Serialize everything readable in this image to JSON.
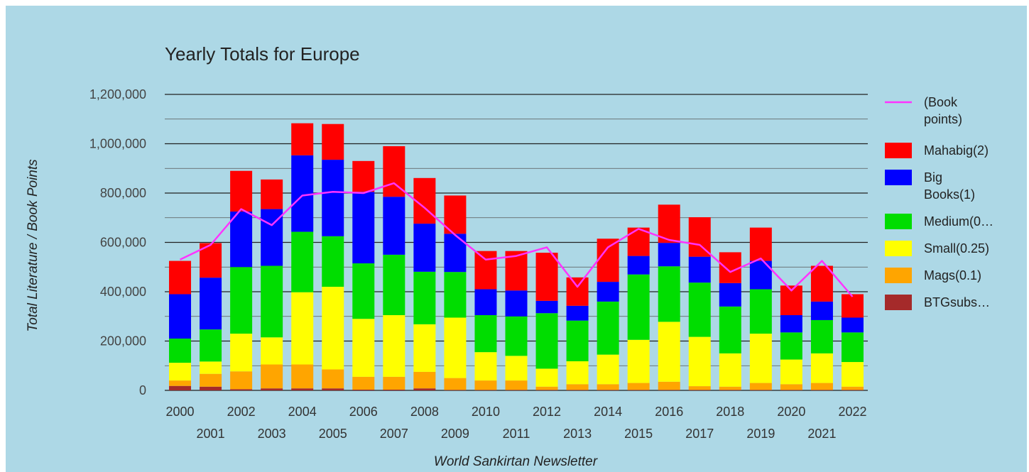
{
  "chart_data": {
    "type": "bar",
    "stacked": true,
    "title": "Yearly Totals for Europe",
    "xlabel": "World Sankirtan Newsletter",
    "ylabel": "Total Literature / Book Points",
    "ylim": [
      0,
      1200000
    ],
    "y_ticks": [
      "0",
      "200,000",
      "400,000",
      "600,000",
      "800,000",
      "1,000,000",
      "1,200,000"
    ],
    "grid": true,
    "legend_position": "right",
    "categories": [
      "2000",
      "2001",
      "2002",
      "2003",
      "2004",
      "2005",
      "2006",
      "2007",
      "2008",
      "2009",
      "2010",
      "2011",
      "2012",
      "2013",
      "2014",
      "2015",
      "2016",
      "2017",
      "2018",
      "2019",
      "2020",
      "2021",
      "2022"
    ],
    "series": [
      {
        "name": "BTGsubs…",
        "legend_label": "BTGsubs…",
        "color": "#a52a2a",
        "values": [
          18000,
          15000,
          5000,
          8000,
          8000,
          8000,
          3000,
          3000,
          8000,
          2000,
          2000,
          2000,
          2000,
          2000,
          2000,
          2000,
          2000,
          2000,
          2000,
          2000,
          2000,
          2000,
          2000
        ]
      },
      {
        "name": "Mags(0.1)",
        "legend_label": "Mags(0.1)",
        "color": "#ffa500",
        "values": [
          22000,
          52000,
          72000,
          97000,
          97000,
          77000,
          52000,
          52000,
          67000,
          48000,
          38000,
          38000,
          13000,
          23000,
          23000,
          28000,
          33000,
          15000,
          13000,
          28000,
          23000,
          28000,
          13000
        ]
      },
      {
        "name": "Small(0.25)",
        "legend_label": "Small(0.25)",
        "color": "#ffff00",
        "values": [
          72000,
          50000,
          153000,
          110000,
          293000,
          335000,
          235000,
          250000,
          193000,
          245000,
          115000,
          100000,
          73000,
          93000,
          120000,
          175000,
          243000,
          200000,
          135000,
          200000,
          100000,
          120000,
          100000
        ]
      },
      {
        "name": "Medium(0…",
        "legend_label": "Medium(0…",
        "color": "#00dd00",
        "values": [
          98000,
          130000,
          270000,
          290000,
          245000,
          205000,
          225000,
          245000,
          213000,
          185000,
          150000,
          160000,
          225000,
          165000,
          215000,
          265000,
          225000,
          220000,
          190000,
          180000,
          110000,
          135000,
          120000
        ]
      },
      {
        "name": "Big Books(1)",
        "legend_label": [
          "Big",
          "Books(1)"
        ],
        "color": "#0000ff",
        "values": [
          180000,
          210000,
          225000,
          230000,
          310000,
          310000,
          290000,
          235000,
          195000,
          155000,
          105000,
          105000,
          50000,
          60000,
          80000,
          75000,
          95000,
          105000,
          95000,
          115000,
          70000,
          75000,
          60000
        ]
      },
      {
        "name": "Mahabig(2)",
        "legend_label": "Mahabig(2)",
        "color": "#ff0000",
        "values": [
          135000,
          140000,
          165000,
          120000,
          130000,
          145000,
          125000,
          205000,
          185000,
          155000,
          155000,
          160000,
          195000,
          115000,
          175000,
          115000,
          155000,
          160000,
          125000,
          135000,
          120000,
          145000,
          95000
        ]
      }
    ],
    "line_series": {
      "name": "(Book points)",
      "legend_label": [
        "(Book",
        "points)"
      ],
      "color": "#ff33ff",
      "values": [
        530000,
        590000,
        735000,
        670000,
        790000,
        805000,
        800000,
        840000,
        740000,
        630000,
        530000,
        545000,
        580000,
        420000,
        580000,
        655000,
        610000,
        590000,
        480000,
        535000,
        405000,
        525000,
        380000
      ]
    }
  }
}
